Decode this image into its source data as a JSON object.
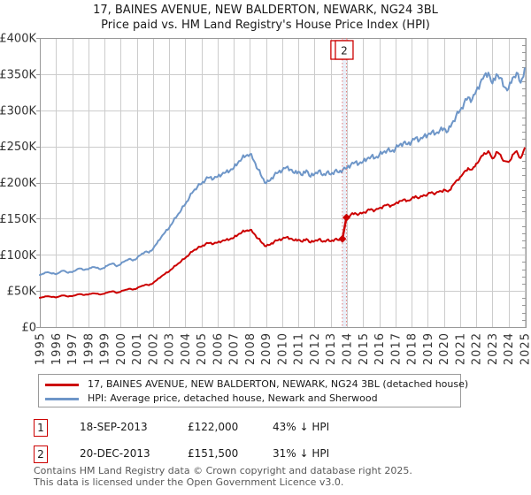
{
  "title": {
    "line1": "17, BAINES AVENUE, NEW BALDERTON, NEWARK, NG24 3BL",
    "line2": "Price paid vs. HM Land Registry's House Price Index (HPI)"
  },
  "legend": {
    "items": [
      {
        "label": "17, BAINES AVENUE, NEW BALDERTON, NEWARK, NG24 3BL (detached house)",
        "color": "#cc0000"
      },
      {
        "label": "HPI: Average price, detached house, Newark and Sherwood",
        "color": "#6e96c8"
      }
    ]
  },
  "sales": [
    {
      "num": "1",
      "date": "18-SEP-2013",
      "price": "£122,000",
      "vs_hpi": "43% ↓ HPI"
    },
    {
      "num": "2",
      "date": "20-DEC-2013",
      "price": "£151,500",
      "vs_hpi": "31% ↓ HPI"
    }
  ],
  "footer": {
    "line1": "Contains HM Land Registry data © Crown copyright and database right 2025.",
    "line2": "This data is licensed under the Open Government Licence v3.0."
  },
  "chart_data": {
    "type": "line",
    "title": "Price paid vs. HM Land Registry's House Price Index (HPI)",
    "xlabel": "",
    "ylabel": "",
    "xlim": [
      1995,
      2025.06
    ],
    "ylim": [
      0,
      400000
    ],
    "grid": true,
    "legend_position": "bottom",
    "unit": 1000,
    "y_ticks": [
      {
        "value": 0,
        "label": "£0"
      },
      {
        "value": 50000,
        "label": "£50K"
      },
      {
        "value": 100000,
        "label": "£100K"
      },
      {
        "value": 150000,
        "label": "£150K"
      },
      {
        "value": 200000,
        "label": "£200K"
      },
      {
        "value": 250000,
        "label": "£250K"
      },
      {
        "value": 300000,
        "label": "£300K"
      },
      {
        "value": 350000,
        "label": "£350K"
      },
      {
        "value": 400000,
        "label": "£400K"
      }
    ],
    "x_ticks": [
      1995,
      1996,
      1997,
      1998,
      1999,
      2000,
      2001,
      2002,
      2003,
      2004,
      2005,
      2006,
      2007,
      2008,
      2009,
      2010,
      2011,
      2012,
      2013,
      2014,
      2015,
      2016,
      2017,
      2018,
      2019,
      2020,
      2021,
      2022,
      2023,
      2024,
      2025
    ],
    "minor_y_tick_step": 10000,
    "colors": {
      "grid": "#cccccc",
      "border": "#999999",
      "event_line": "#e07878",
      "event_band": "#e9eff8",
      "tick_label": "#333333"
    },
    "series": [
      {
        "name": "HPI: Average price, detached house, Newark and Sherwood",
        "color": "#6e96c8",
        "segments": [
          {
            "x0": 1995,
            "dx": 0.25,
            "values_k": [
              72,
              74,
              76,
              74,
              73,
              76,
              78,
              75,
              76,
              79,
              81,
              79,
              80,
              83,
              82,
              80,
              82,
              86,
              88,
              84,
              87,
              91,
              94,
              92,
              95,
              100,
              104,
              103,
              108,
              116,
              124,
              131,
              137,
              146,
              154,
              162,
              170,
              179,
              188,
              194,
              198,
              204,
              207,
              205,
              208,
              211,
              214,
              216,
              220,
              227,
              233,
              237,
              239,
              230,
              218,
              207,
              199,
              203,
              210,
              214,
              217,
              221,
              218,
              213,
              215,
              210,
              217,
              208,
              212,
              216,
              210,
              214,
              211,
              216,
              214,
              218,
              220,
              225,
              228,
              226,
              229,
              233,
              236,
              234,
              238,
              242,
              245,
              243,
              247,
              252,
              255,
              253,
              257,
              262,
              259,
              264,
              266,
              270,
              268,
              272,
              275,
              271,
              282,
              292,
              300,
              310,
              318,
              315,
              327,
              338,
              348,
              352,
              337,
              350,
              345,
              332,
              330,
              345,
              352,
              338,
              358
            ]
          }
        ]
      },
      {
        "name": "17, BAINES AVENUE, NEW BALDERTON, NEWARK, NG24 3BL (detached house)",
        "color": "#cc0000",
        "segments": [
          {
            "x0": 1995,
            "dx": 0.25,
            "values_k": [
              40.5,
              41.6,
              42.7,
              41.6,
              41.0,
              42.7,
              43.8,
              42.2,
              42.7,
              44.4,
              45.5,
              44.4,
              45.0,
              46.6,
              46.1,
              45.0,
              46.1,
              48.3,
              49.5,
              47.2,
              48.9,
              51.1,
              52.8,
              51.7,
              53.4,
              56.2,
              58.4,
              57.9,
              60.7,
              65.2,
              69.7,
              73.6,
              77.0,
              82.1,
              86.6,
              91.1,
              95.5,
              100.6,
              105.7,
              109.0,
              111.3,
              114.7,
              116.3,
              115.2,
              116.9,
              118.6,
              120.3,
              121.4,
              123.6,
              127.6,
              131.0,
              133.2,
              134.3,
              129.3,
              122.5,
              116.3,
              111.8,
              114.1,
              118.0,
              120.3,
              122.0,
              124.2,
              122.5,
              119.7,
              120.8,
              118.0,
              122.0,
              116.9,
              119.1,
              121.4,
              118.0,
              120.3,
              118.6,
              121.4,
              120.3
            ],
            "tail_k": [
              [
                2013.72,
                122.0
              ]
            ]
          },
          {
            "head_k": [
              [
                2013.97,
                151.5
              ]
            ],
            "x0": 2014,
            "dx": 0.25,
            "values_k": [
              152.2,
              155.7,
              157.8,
              156.4,
              158.5,
              161.2,
              163.3,
              161.9,
              164.7,
              167.5,
              169.5,
              168.2,
              170.9,
              174.4,
              176.5,
              175.1,
              177.8,
              181.3,
              179.2,
              182.7,
              184.1,
              186.8,
              185.5,
              188.2,
              190.3,
              187.5,
              195.1,
              202.1,
              207.6,
              214.5,
              220.1,
              218.0,
              226.3,
              233.9,
              240.8,
              243.6,
              233.2,
              242.2,
              238.7,
              229.7,
              228.4,
              238.7,
              243.6,
              233.9,
              247.7
            ]
          }
        ],
        "connector_k": [
          [
            2013.72,
            122.0
          ],
          [
            2013.97,
            151.5
          ]
        ],
        "markers_k": [
          [
            2013.72,
            122.0
          ],
          [
            2013.97,
            151.5
          ]
        ]
      }
    ],
    "events": [
      {
        "label": "1",
        "x": 2013.72,
        "price": 122000
      },
      {
        "label": "2",
        "x": 2013.97,
        "price": 151500
      }
    ]
  }
}
